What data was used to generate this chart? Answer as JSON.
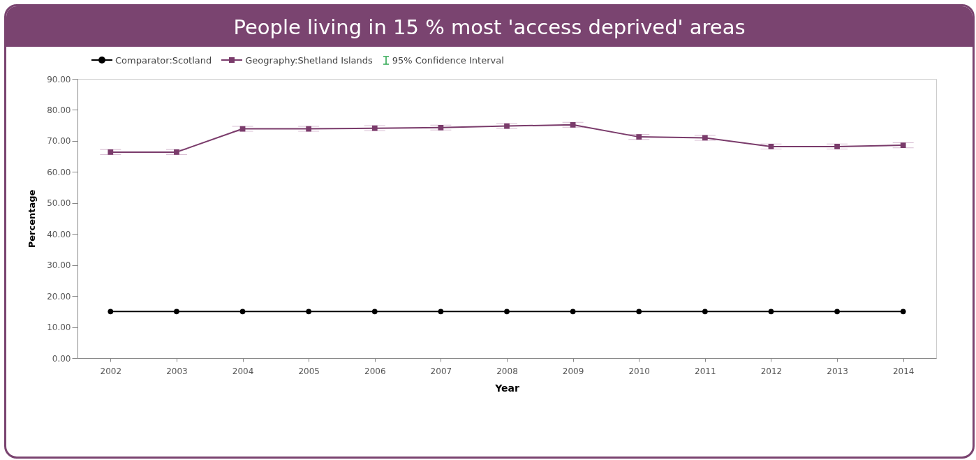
{
  "chart_data": {
    "type": "line",
    "title": "People living in 15 % most 'access deprived' areas",
    "xlabel": "Year",
    "ylabel": "Percentage",
    "categories": [
      "2002",
      "2003",
      "2004",
      "2005",
      "2006",
      "2007",
      "2008",
      "2009",
      "2010",
      "2011",
      "2012",
      "2013",
      "2014"
    ],
    "series": [
      {
        "name": "Comparator:Scotland",
        "color": "#000000",
        "marker": "circle",
        "values": [
          15,
          15,
          15,
          15,
          15,
          15,
          15,
          15,
          15,
          15,
          15,
          15,
          15
        ]
      },
      {
        "name": "Geography:Shetland Islands",
        "color": "#7a3b6b",
        "marker": "square",
        "values": [
          66.4,
          66.4,
          73.9,
          73.9,
          74.1,
          74.3,
          74.8,
          75.2,
          71.3,
          71.0,
          68.2,
          68.2,
          68.6
        ],
        "errors": [
          0.8,
          0.8,
          0.8,
          0.8,
          0.8,
          0.8,
          0.8,
          0.8,
          0.8,
          0.8,
          0.8,
          0.8,
          0.8
        ]
      }
    ],
    "annotations": [
      "95% Confidence Interval"
    ],
    "ylim": [
      0,
      90
    ],
    "yticks": [
      {
        "value": 0,
        "label": "0.00"
      },
      {
        "value": 10,
        "label": "10.00"
      },
      {
        "value": 20,
        "label": "20.00"
      },
      {
        "value": 30,
        "label": "30.00"
      },
      {
        "value": 40,
        "label": "40.00"
      },
      {
        "value": 50,
        "label": "50.00"
      },
      {
        "value": 60,
        "label": "60.00"
      },
      {
        "value": 70,
        "label": "70.00"
      },
      {
        "value": 80,
        "label": "80.00"
      },
      {
        "value": 90,
        "label": "90.00"
      }
    ],
    "grid": false,
    "legend": "top left"
  }
}
